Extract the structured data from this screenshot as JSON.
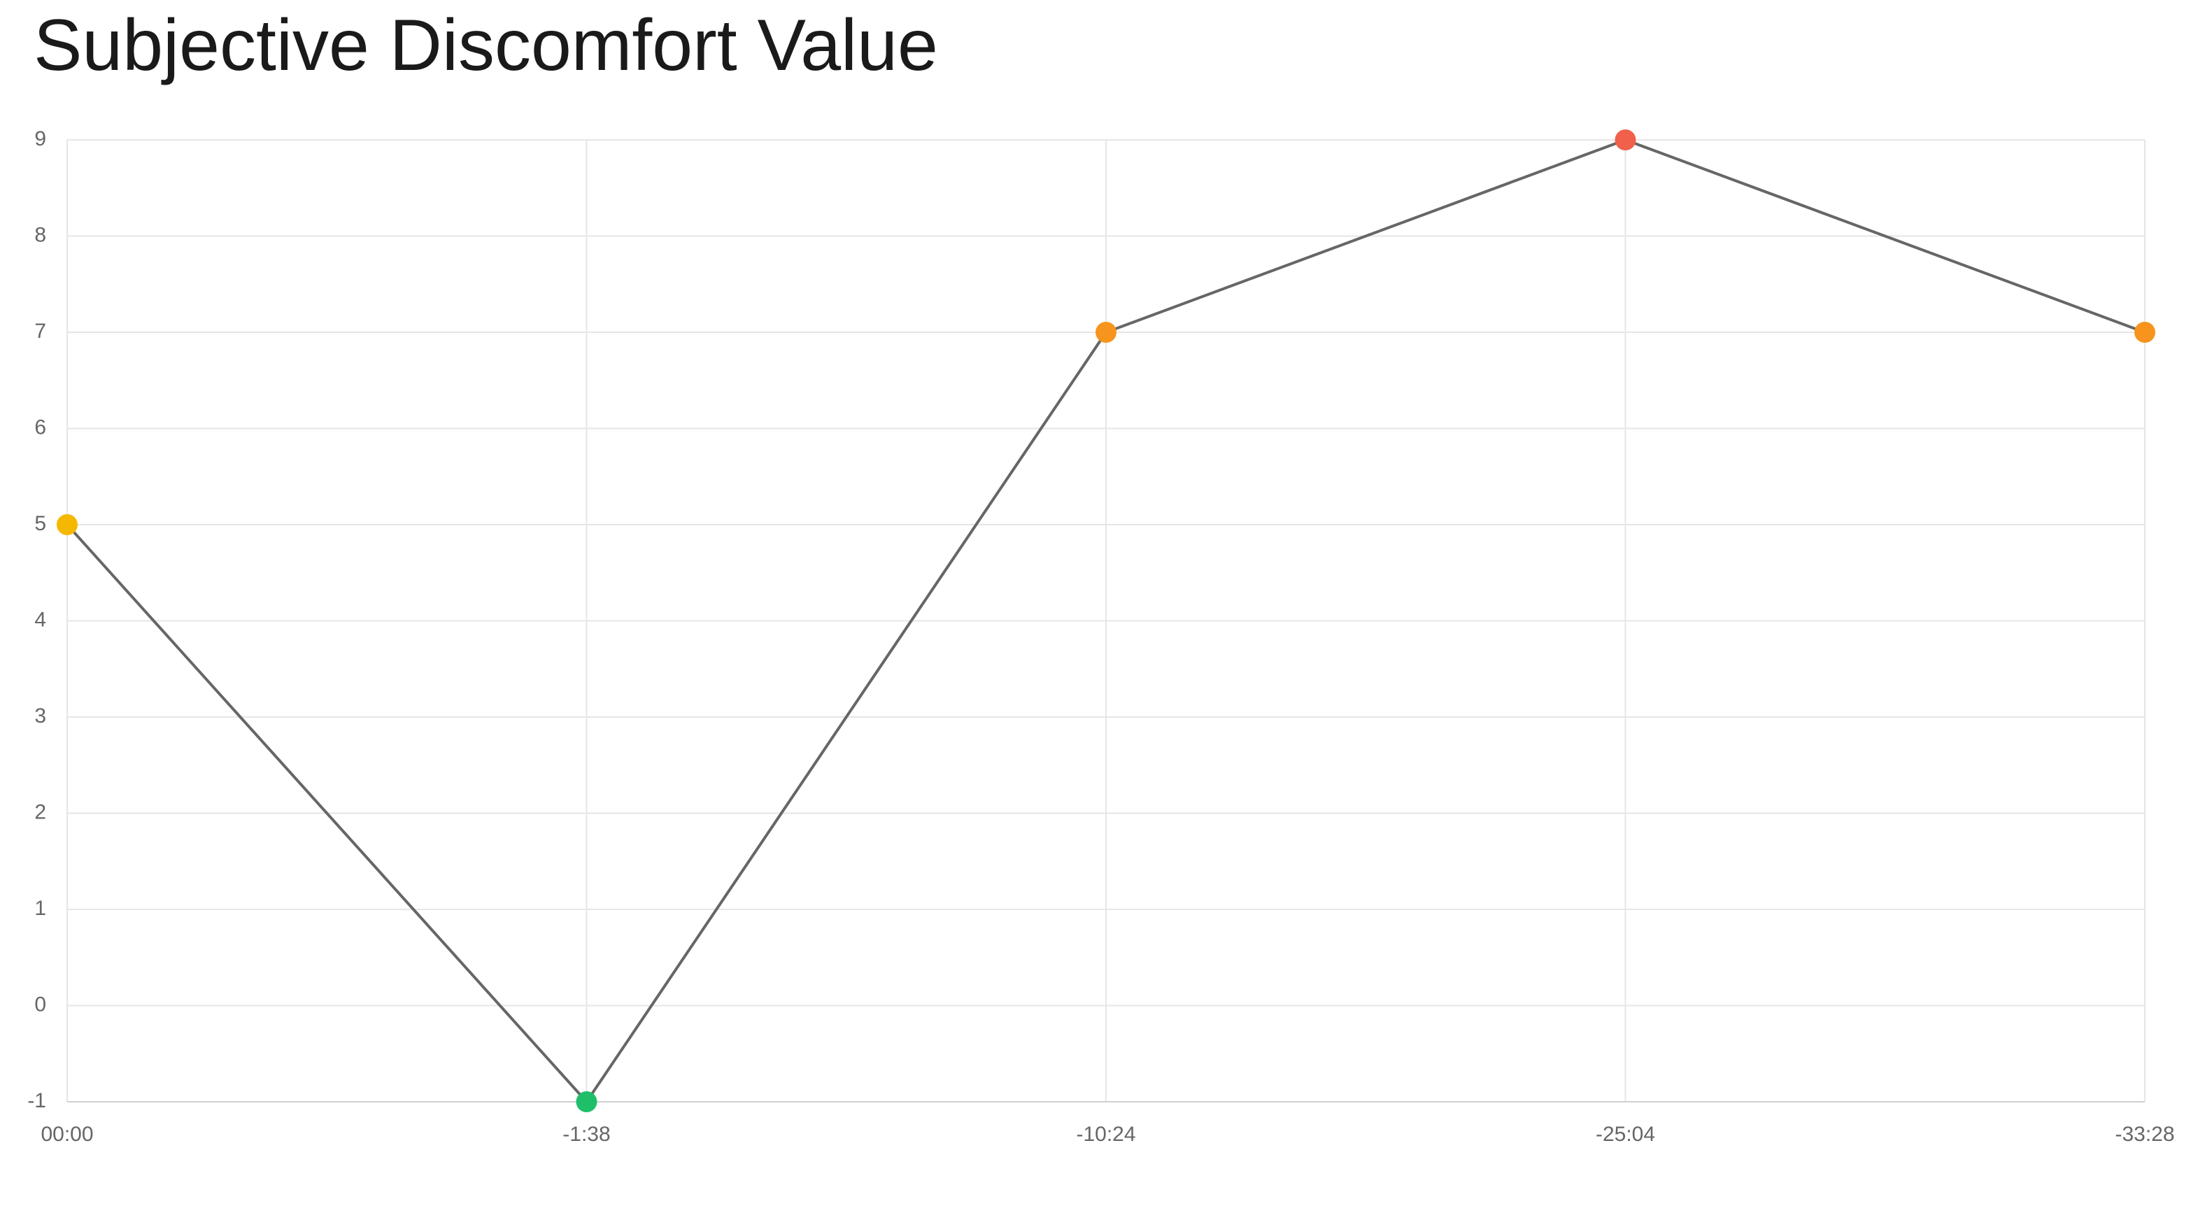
{
  "chart_data": {
    "type": "line",
    "title": "Subjective Discomfort Value",
    "categories": [
      "00:00",
      "-1:38",
      "-10:24",
      "-25:04",
      "-33:28"
    ],
    "series": [
      {
        "color": "#666666",
        "values": [
          5,
          -1,
          7,
          9,
          7
        ],
        "point_colors": [
          "#f5b800",
          "#1fbf6a",
          "#f7941d",
          "#f0604a",
          "#f7941d"
        ]
      }
    ],
    "ylim": [
      -1,
      9
    ],
    "yticks": [
      -1,
      0,
      1,
      2,
      3,
      4,
      5,
      6,
      7,
      8,
      9
    ],
    "grid": true
  }
}
